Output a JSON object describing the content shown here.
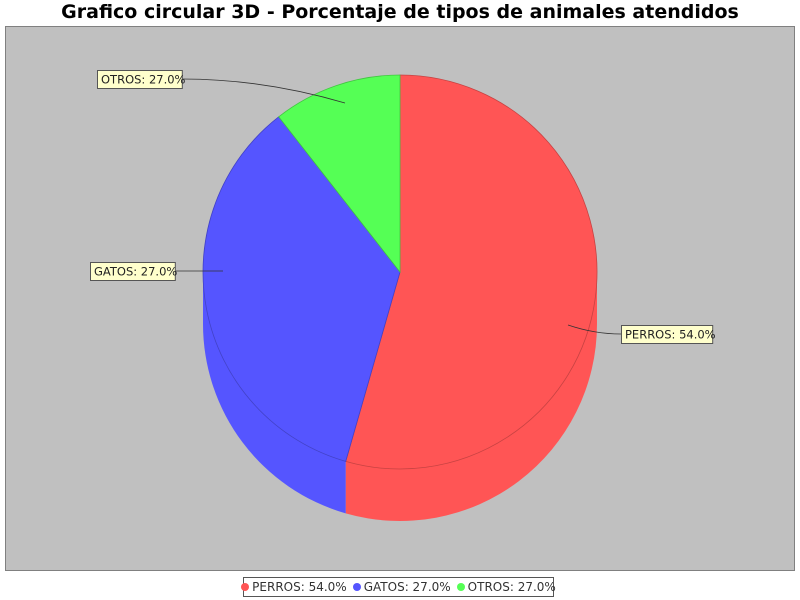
{
  "chart_data": {
    "type": "pie",
    "title": "Grafico circular 3D - Porcentaje de tipos de animales atendidos",
    "style": "3d",
    "slices": [
      {
        "name": "PERROS",
        "value": 54.0,
        "label": "PERROS: 54.0%",
        "color": "#ff5555"
      },
      {
        "name": "GATOS",
        "value": 27.0,
        "label": "GATOS: 27.0%",
        "color": "#5555ff"
      },
      {
        "name": "OTROS",
        "value": 27.0,
        "label": "OTROS: 27.0%",
        "color": "#55ff55"
      }
    ],
    "legend_position": "bottom",
    "background_color": "#c0c0c0"
  }
}
